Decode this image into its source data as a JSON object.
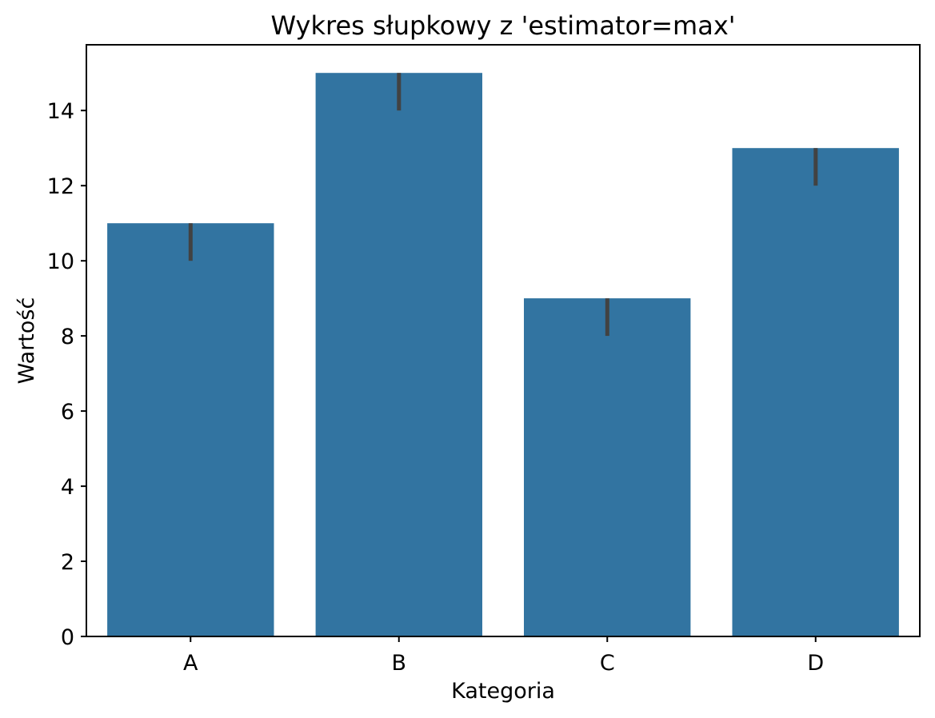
{
  "chart_data": {
    "type": "bar",
    "title": "Wykres słupkowy z 'estimator=max'",
    "xlabel": "Kategoria",
    "ylabel": "Wartość",
    "categories": [
      "A",
      "B",
      "C",
      "D"
    ],
    "values": [
      11,
      15,
      9,
      13
    ],
    "error_bars": [
      {
        "low": 10,
        "high": 11
      },
      {
        "low": 14,
        "high": 15
      },
      {
        "low": 8,
        "high": 9
      },
      {
        "low": 12,
        "high": 13
      }
    ],
    "yticks": [
      0,
      2,
      4,
      6,
      8,
      10,
      12,
      14
    ],
    "ylim": [
      0,
      15.75
    ],
    "bar_width": 0.8,
    "grid": false,
    "legend": "none",
    "colors": {
      "bar": "#3274A1",
      "error_bar": "#424242",
      "axis": "#000000",
      "text": "#000000",
      "background": "#FFFFFF"
    }
  }
}
